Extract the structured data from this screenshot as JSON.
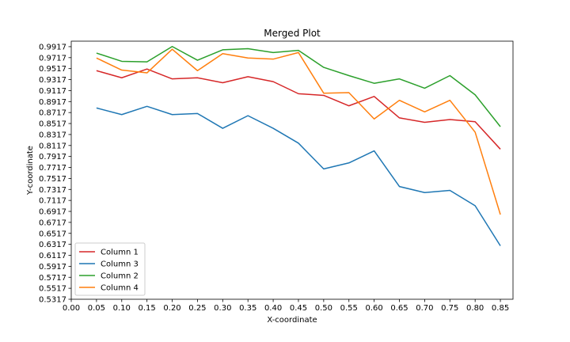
{
  "chart_data": {
    "type": "line",
    "title": "Merged Plot",
    "xlabel": "X-coordinate",
    "ylabel": "Y-coordinate",
    "xlim": [
      0.0,
      0.875
    ],
    "ylim": [
      0.5317,
      1.0017
    ],
    "xticks": [
      "0.00",
      "0.05",
      "0.10",
      "0.15",
      "0.20",
      "0.25",
      "0.30",
      "0.35",
      "0.40",
      "0.45",
      "0.50",
      "0.55",
      "0.60",
      "0.65",
      "0.70",
      "0.75",
      "0.80",
      "0.85"
    ],
    "yticks": [
      "0.5317",
      "0.5517",
      "0.5717",
      "0.5917",
      "0.6117",
      "0.6317",
      "0.6517",
      "0.6717",
      "0.6917",
      "0.7117",
      "0.7317",
      "0.7517",
      "0.7717",
      "0.7917",
      "0.8117",
      "0.8317",
      "0.8517",
      "0.8717",
      "0.8917",
      "0.9117",
      "0.9317",
      "0.9517",
      "0.9717",
      "0.9917"
    ],
    "grid": false,
    "legend_position": "lower-left",
    "x": [
      0.05,
      0.1,
      0.15,
      0.2,
      0.25,
      0.3,
      0.35,
      0.4,
      0.45,
      0.5,
      0.55,
      0.6,
      0.65,
      0.7,
      0.75,
      0.8,
      0.85
    ],
    "series": [
      {
        "name": "Column 1",
        "color": "#d62728",
        "values": [
          0.948,
          0.935,
          0.951,
          0.933,
          0.935,
          0.926,
          0.937,
          0.928,
          0.906,
          0.903,
          0.884,
          0.901,
          0.862,
          0.854,
          0.859,
          0.855,
          0.805
        ]
      },
      {
        "name": "Column 3",
        "color": "#1f77b4",
        "values": [
          0.88,
          0.868,
          0.883,
          0.868,
          0.87,
          0.843,
          0.866,
          0.843,
          0.816,
          0.769,
          0.78,
          0.802,
          0.737,
          0.726,
          0.73,
          0.702,
          0.629
        ]
      },
      {
        "name": "Column 2",
        "color": "#2ca02c",
        "values": [
          0.98,
          0.965,
          0.964,
          0.992,
          0.967,
          0.986,
          0.988,
          0.981,
          0.985,
          0.954,
          0.939,
          0.925,
          0.933,
          0.916,
          0.939,
          0.904,
          0.846
        ]
      },
      {
        "name": "Column 4",
        "color": "#ff7f0e",
        "values": [
          0.971,
          0.949,
          0.944,
          0.987,
          0.948,
          0.979,
          0.971,
          0.969,
          0.981,
          0.907,
          0.908,
          0.86,
          0.894,
          0.873,
          0.894,
          0.836,
          0.686
        ]
      }
    ]
  }
}
